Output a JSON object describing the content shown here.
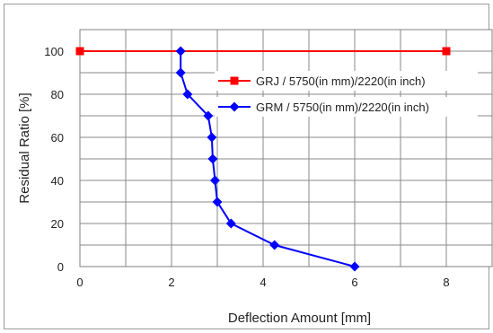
{
  "chart_data": {
    "type": "line",
    "title": "",
    "xlabel": "Deflection Amount [mm]",
    "ylabel": "Residual Ratio [%]",
    "xlim": [
      0,
      9
    ],
    "ylim": [
      0,
      110
    ],
    "x_ticks": [
      0,
      2,
      4,
      6,
      8
    ],
    "y_ticks": [
      0,
      20,
      40,
      60,
      80,
      100
    ],
    "x_tick_labels": [
      "0",
      "2",
      "4",
      "6",
      "8"
    ],
    "y_tick_labels": [
      "0",
      "20",
      "40",
      "60",
      "80",
      "100"
    ],
    "grid": true,
    "legend_position": "top-right",
    "series": [
      {
        "name": "GRJ / 5750(in mm)/2220(in inch)",
        "color": "#ff0000",
        "marker": "square",
        "x": [
          0,
          8
        ],
        "y": [
          100,
          100
        ]
      },
      {
        "name": "GRM / 5750(in mm)/2220(in inch)",
        "color": "#0000ff",
        "marker": "diamond",
        "x": [
          2.2,
          2.2,
          2.35,
          2.8,
          2.88,
          2.9,
          2.95,
          3.0,
          3.3,
          4.25,
          6.0
        ],
        "y": [
          100,
          90,
          80,
          70,
          60,
          50,
          40,
          30,
          20,
          10,
          0
        ]
      }
    ]
  }
}
